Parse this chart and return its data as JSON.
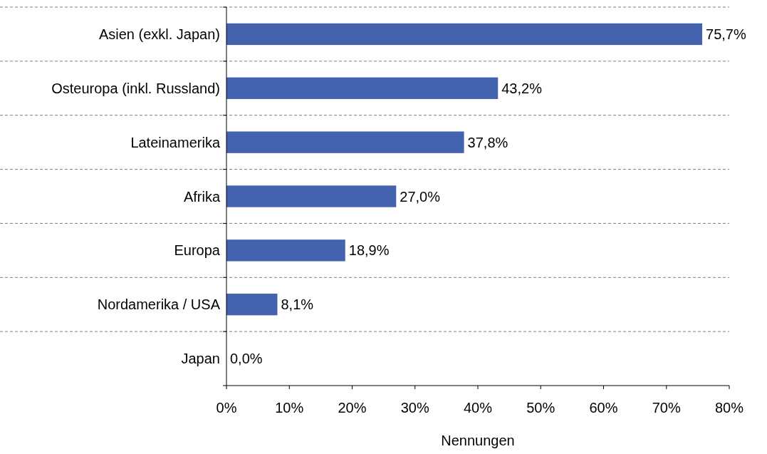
{
  "chart_data": {
    "type": "bar",
    "orientation": "horizontal",
    "xlabel": "Nennungen",
    "categories": [
      "Asien (exkl. Japan)",
      "Osteuropa (inkl. Russland)",
      "Lateinamerika",
      "Afrika",
      "Europa",
      "Nordamerika / USA",
      "Japan"
    ],
    "values": [
      75.7,
      43.2,
      37.8,
      27.0,
      18.9,
      8.1,
      0.0
    ],
    "value_labels": [
      "75,7%",
      "43,2%",
      "37,8%",
      "27,0%",
      "18,9%",
      "8,1%",
      "0,0%"
    ],
    "color": "#4463ae",
    "xlim": [
      0,
      80
    ],
    "xticks": [
      {
        "value": 0,
        "label": "0%"
      },
      {
        "value": 10,
        "label": "10%"
      },
      {
        "value": 20,
        "label": "20%"
      },
      {
        "value": 30,
        "label": "30%"
      },
      {
        "value": 40,
        "label": "40%"
      },
      {
        "value": 50,
        "label": "50%"
      },
      {
        "value": 60,
        "label": "60%"
      },
      {
        "value": 70,
        "label": "70%"
      },
      {
        "value": 80,
        "label": "80%"
      }
    ],
    "grid": "y"
  }
}
